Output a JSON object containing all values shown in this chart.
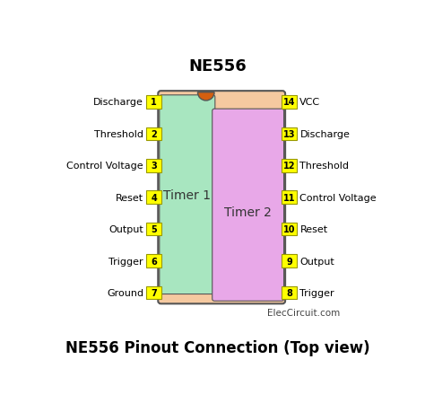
{
  "title": "NE556",
  "subtitle": "NE556 Pinout Connection (Top view)",
  "credit": "ElecCircuit.com",
  "background_color": "#ffffff",
  "ic_body_color": "#f5c9a0",
  "timer1_color": "#a8e6c0",
  "timer2_color": "#e8a8e8",
  "notch_color": "#d45f10",
  "pin_box_color": "#ffff00",
  "pin_box_edge": "#999900",
  "left_pins": [
    {
      "num": 1,
      "label": "Discharge"
    },
    {
      "num": 2,
      "label": "Threshold"
    },
    {
      "num": 3,
      "label": "Control Voltage"
    },
    {
      "num": 4,
      "label": "Reset"
    },
    {
      "num": 5,
      "label": "Output"
    },
    {
      "num": 6,
      "label": "Trigger"
    },
    {
      "num": 7,
      "label": "Ground"
    }
  ],
  "right_pins": [
    {
      "num": 14,
      "label": "VCC"
    },
    {
      "num": 13,
      "label": "Discharge"
    },
    {
      "num": 12,
      "label": "Threshold"
    },
    {
      "num": 11,
      "label": "Control Voltage"
    },
    {
      "num": 10,
      "label": "Reset"
    },
    {
      "num": 9,
      "label": "Output"
    },
    {
      "num": 8,
      "label": "Trigger"
    }
  ],
  "title_fontsize": 13,
  "subtitle_fontsize": 12,
  "label_fontsize": 8,
  "pin_num_fontsize": 7,
  "timer_fontsize": 10
}
